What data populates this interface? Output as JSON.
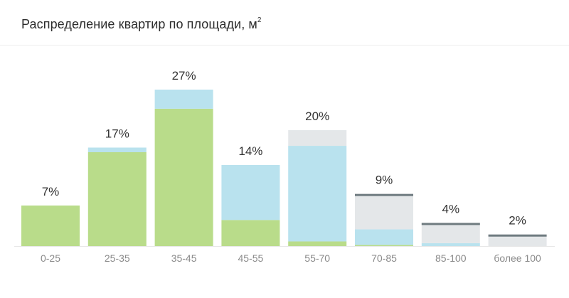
{
  "chart_data": {
    "type": "bar",
    "title": "Распределение квартир по площади, м",
    "title_sup": "2",
    "categories": [
      "0-25",
      "25-35",
      "35-45",
      "45-55",
      "55-70",
      "70-85",
      "85-100",
      "более 100"
    ],
    "labels": [
      "7%",
      "17%",
      "27%",
      "14%",
      "20%",
      "9%",
      "4%",
      "2%"
    ],
    "values": [
      7,
      17,
      27,
      14,
      20,
      9,
      4,
      2
    ],
    "segments": [
      [
        7,
        0,
        0
      ],
      [
        16.2,
        0.8,
        0
      ],
      [
        23.7,
        3.3,
        0
      ],
      [
        4.5,
        9.5,
        0
      ],
      [
        0.8,
        16.5,
        2.7
      ],
      [
        0.2,
        2.7,
        6.1
      ],
      [
        0,
        0.5,
        3.5
      ],
      [
        0,
        0,
        2
      ]
    ],
    "cap_bars": [
      false,
      false,
      false,
      false,
      false,
      true,
      true,
      true
    ],
    "ylim": [
      0,
      30
    ],
    "colors": {
      "segment_1": "#b9dc8a",
      "segment_2": "#b9e2ee",
      "segment_3": "#e4e7e9",
      "cap": "#6f7b80",
      "baseline": "#e8e8e8"
    }
  }
}
